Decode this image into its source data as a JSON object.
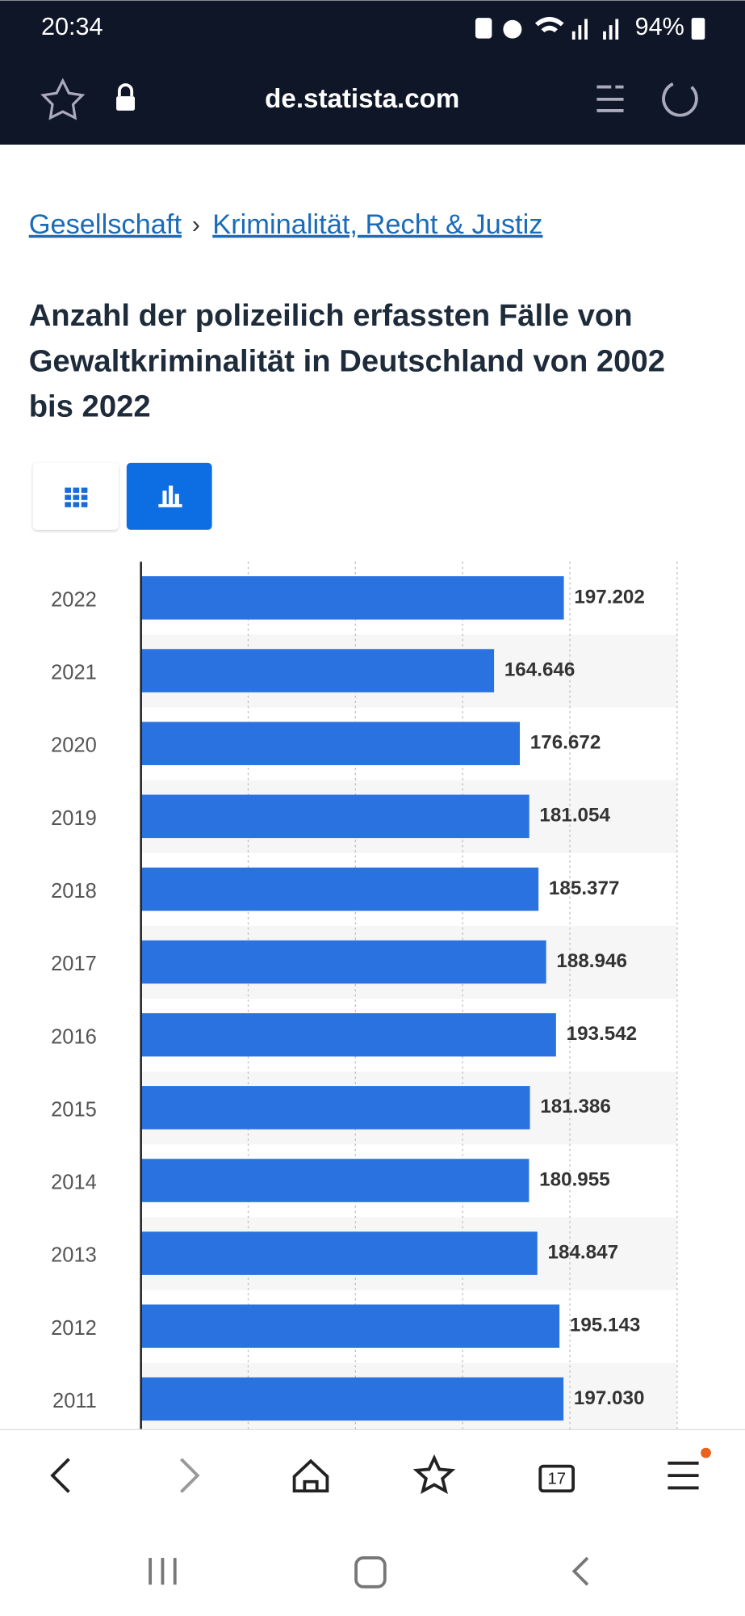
{
  "status_bar": {
    "time": "20:34",
    "battery": "94%"
  },
  "browser": {
    "url": "de.statista.com",
    "tab_count": "17"
  },
  "breadcrumb": {
    "items": [
      "Gesellschaft",
      "Kriminalität, Recht & Justiz"
    ],
    "separator": "›"
  },
  "chart_data": {
    "type": "bar",
    "orientation": "horizontal",
    "title": "Anzahl der polizeilich erfassten Fälle von Gewaltkriminalität in Deutschland von 2002 bis 2022",
    "categories": [
      "2022",
      "2021",
      "2020",
      "2019",
      "2018",
      "2017",
      "2016",
      "2015",
      "2014",
      "2013",
      "2012",
      "2011"
    ],
    "values": [
      197202,
      164646,
      176672,
      181054,
      185377,
      188946,
      193542,
      181386,
      180955,
      184847,
      195143,
      197030
    ],
    "value_labels": [
      "197.202",
      "164.646",
      "176.672",
      "181.054",
      "185.377",
      "188.946",
      "193.542",
      "181.386",
      "180.955",
      "184.847",
      "195.143",
      "197.030"
    ],
    "color": "#2a72e0",
    "xlim": [
      0,
      250000
    ],
    "xticks": [
      0,
      50000,
      100000,
      150000,
      200000,
      250000
    ],
    "grid": true
  }
}
